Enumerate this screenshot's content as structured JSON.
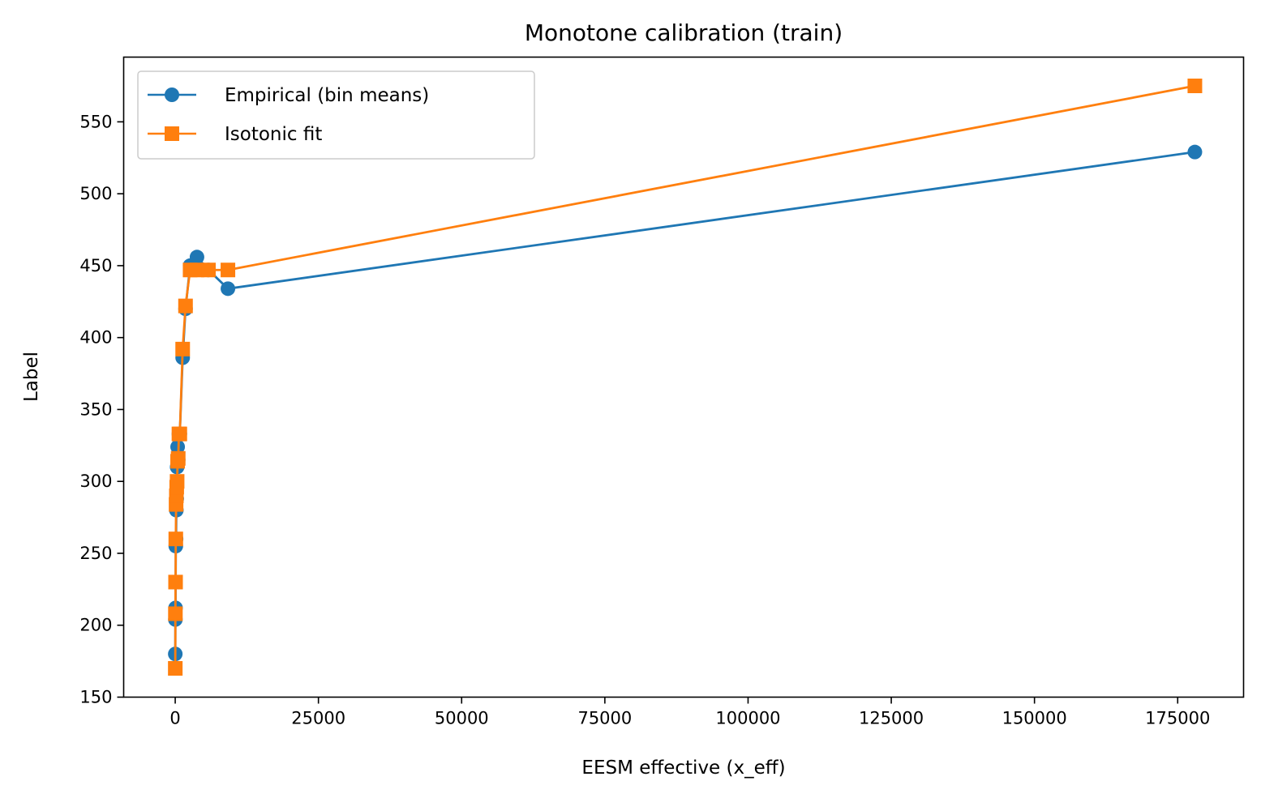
{
  "chart_data": {
    "type": "line",
    "title": "Monotone calibration (train)",
    "xlabel": "EESM effective (x_eff)",
    "ylabel": "Label",
    "xlim": [
      -9000,
      186500
    ],
    "ylim": [
      150,
      595
    ],
    "x_ticks": [
      0,
      25000,
      50000,
      75000,
      100000,
      125000,
      150000,
      175000
    ],
    "x_tick_labels": [
      "0",
      "25000",
      "50000",
      "75000",
      "100000",
      "125000",
      "150000",
      "175000"
    ],
    "y_ticks": [
      150,
      200,
      250,
      300,
      350,
      400,
      450,
      500,
      550
    ],
    "y_tick_labels": [
      "150",
      "200",
      "250",
      "300",
      "350",
      "400",
      "450",
      "500",
      "550"
    ],
    "grid": false,
    "legend_position": "top-left",
    "series": [
      {
        "name": "Empirical (bin means)",
        "color": "#1f77b4",
        "marker": "circle",
        "x": [
          10,
          30,
          60,
          100,
          150,
          200,
          260,
          330,
          420,
          520,
          650,
          800,
          1300,
          1800,
          2600,
          3800,
          5800,
          9200,
          178000
        ],
        "y": [
          180,
          204,
          212,
          255,
          260,
          280,
          288,
          310,
          324,
          315,
          333,
          333,
          386,
          420,
          450,
          456,
          447,
          434,
          529
        ]
      },
      {
        "name": "Isotonic fit",
        "color": "#ff7f0e",
        "marker": "square",
        "x": [
          10,
          30,
          60,
          100,
          150,
          200,
          260,
          330,
          420,
          520,
          650,
          800,
          1300,
          1800,
          2600,
          3800,
          5800,
          9200,
          178000
        ],
        "y": [
          170,
          208,
          230,
          260,
          284,
          290,
          296,
          300,
          314,
          316,
          333,
          333,
          392,
          422,
          447,
          447,
          447,
          447,
          575
        ]
      }
    ]
  }
}
